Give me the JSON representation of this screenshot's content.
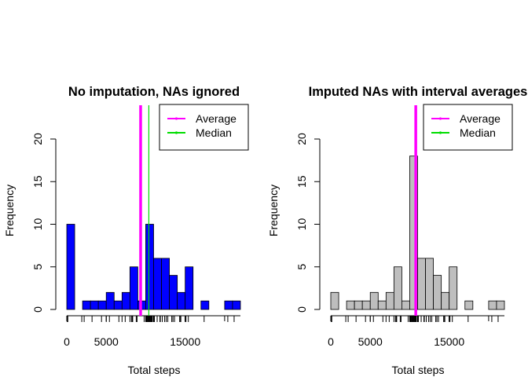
{
  "chart_data": [
    {
      "type": "bar",
      "title": "No imputation, NAs ignored",
      "xlabel": "Total steps",
      "ylabel": "Frequency",
      "bin_width": 1000,
      "bin_start": 0,
      "xlim": [
        0,
        22000
      ],
      "ylim": [
        0,
        20
      ],
      "x_ticks": [
        0,
        5000,
        15000
      ],
      "x_tick_labels": [
        "0",
        "5000",
        "15000"
      ],
      "x_minor_ticks": [
        10000,
        20000
      ],
      "y_ticks": [
        0,
        5,
        10,
        15,
        20
      ],
      "y_tick_labels": [
        "0",
        "5",
        "10",
        "15",
        "20"
      ],
      "values": [
        10,
        0,
        1,
        1,
        1,
        2,
        1,
        2,
        5,
        1,
        10,
        6,
        6,
        4,
        2,
        5,
        0,
        1,
        0,
        0,
        1,
        1
      ],
      "bar_color": "#0000ff",
      "average": 9354,
      "median": 10395,
      "legend": [
        {
          "label": "Average",
          "color": "#ff00ff"
        },
        {
          "label": "Median",
          "color": "#00dd00"
        }
      ],
      "legend_position": "top-right",
      "rug": [
        41,
        126,
        1900,
        2200,
        3200,
        4400,
        5000,
        5400,
        6600,
        7000,
        7400,
        8000,
        8200,
        8300,
        8350,
        8800,
        8900,
        9800,
        10000,
        10050,
        10100,
        10150,
        10200,
        10300,
        10400,
        10450,
        10550,
        10600,
        10700,
        10750,
        10850,
        11000,
        11100,
        11450,
        11800,
        11850,
        12100,
        12400,
        12600,
        12800,
        13300,
        13450,
        13650,
        14300,
        14350,
        14450,
        15000,
        15100,
        15400,
        17400,
        20400,
        21200
      ]
    },
    {
      "type": "bar",
      "title": "Imputed NAs with interval averages",
      "xlabel": "Total steps",
      "ylabel": "Frequency",
      "bin_width": 1000,
      "bin_start": 0,
      "xlim": [
        0,
        22000
      ],
      "ylim": [
        0,
        20
      ],
      "x_ticks": [
        0,
        5000,
        15000
      ],
      "x_tick_labels": [
        "0",
        "5000",
        "15000"
      ],
      "x_minor_ticks": [
        10000,
        20000
      ],
      "y_ticks": [
        0,
        5,
        10,
        15,
        20
      ],
      "y_tick_labels": [
        "0",
        "5",
        "10",
        "15",
        "20"
      ],
      "values": [
        2,
        0,
        1,
        1,
        1,
        2,
        1,
        2,
        5,
        1,
        18,
        6,
        6,
        4,
        2,
        5,
        0,
        1,
        0,
        0,
        1,
        1
      ],
      "bar_color": "#bebebe",
      "average": 10766,
      "median": 10766,
      "legend": [
        {
          "label": "Average",
          "color": "#ff00ff"
        },
        {
          "label": "Median",
          "color": "#00dd00"
        }
      ],
      "legend_position": "top-right",
      "rug": [
        41,
        126,
        1900,
        2200,
        3200,
        4400,
        5000,
        5400,
        6600,
        7000,
        7400,
        8000,
        8200,
        8300,
        8350,
        8800,
        8900,
        9800,
        10000,
        10050,
        10100,
        10150,
        10200,
        10300,
        10400,
        10450,
        10550,
        10600,
        10700,
        10750,
        10766,
        10850,
        11000,
        11100,
        11450,
        11800,
        11850,
        12100,
        12400,
        12600,
        12800,
        13300,
        13450,
        13650,
        14300,
        14350,
        14450,
        15000,
        15100,
        15400,
        17400,
        20400,
        21200
      ]
    }
  ]
}
